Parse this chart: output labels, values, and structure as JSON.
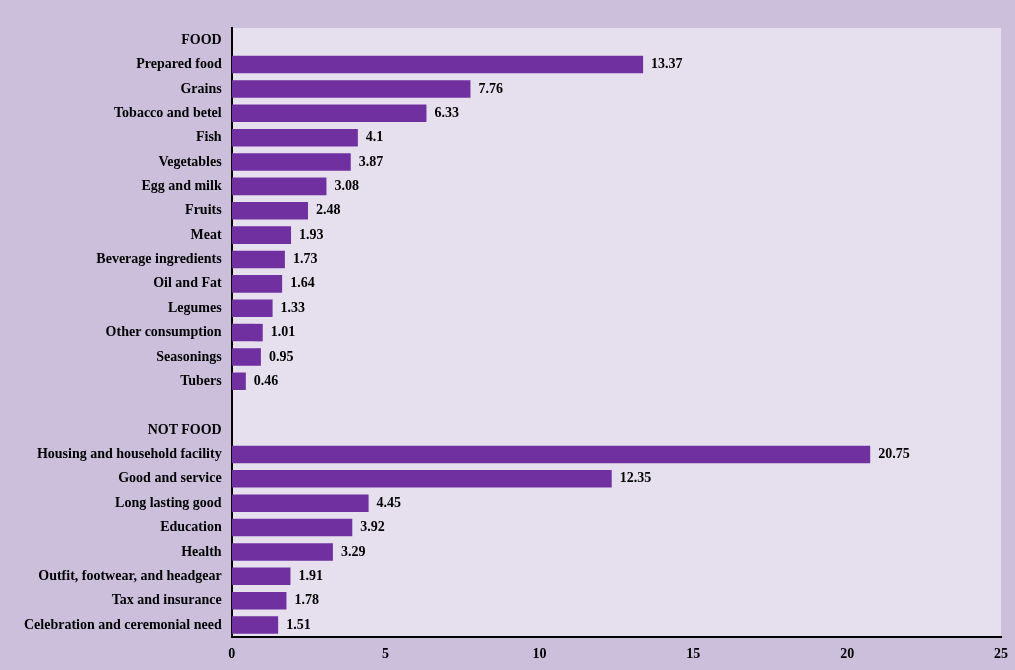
{
  "chart_data": {
    "type": "bar",
    "orientation": "horizontal",
    "categories": [
      "FOOD",
      "Prepared food",
      "Grains",
      "Tobacco and betel",
      "Fish",
      "Vegetables",
      "Egg and milk",
      "Fruits",
      "Meat",
      "Beverage ingredients",
      "Oil and Fat",
      "Legumes",
      "Other consumption",
      "Seasonings",
      "Tubers",
      null,
      "NOT FOOD",
      "Housing and household facility",
      "Good and service",
      "Long lasting good",
      "Education",
      "Health",
      "Outfit, footwear, and headgear",
      "Tax and insurance",
      "Celebration and ceremonial need"
    ],
    "values": [
      null,
      13.37,
      7.76,
      6.33,
      4.1,
      3.87,
      3.08,
      2.48,
      1.93,
      1.73,
      1.64,
      1.33,
      1.01,
      0.95,
      0.46,
      null,
      null,
      20.75,
      12.35,
      4.45,
      3.92,
      3.29,
      1.91,
      1.78,
      1.51
    ],
    "color": "#7030a0",
    "xlim": [
      0,
      25
    ],
    "xticks": [
      0,
      5,
      10,
      15,
      20,
      25
    ],
    "grid": false,
    "legend": false,
    "data_labels": true
  }
}
